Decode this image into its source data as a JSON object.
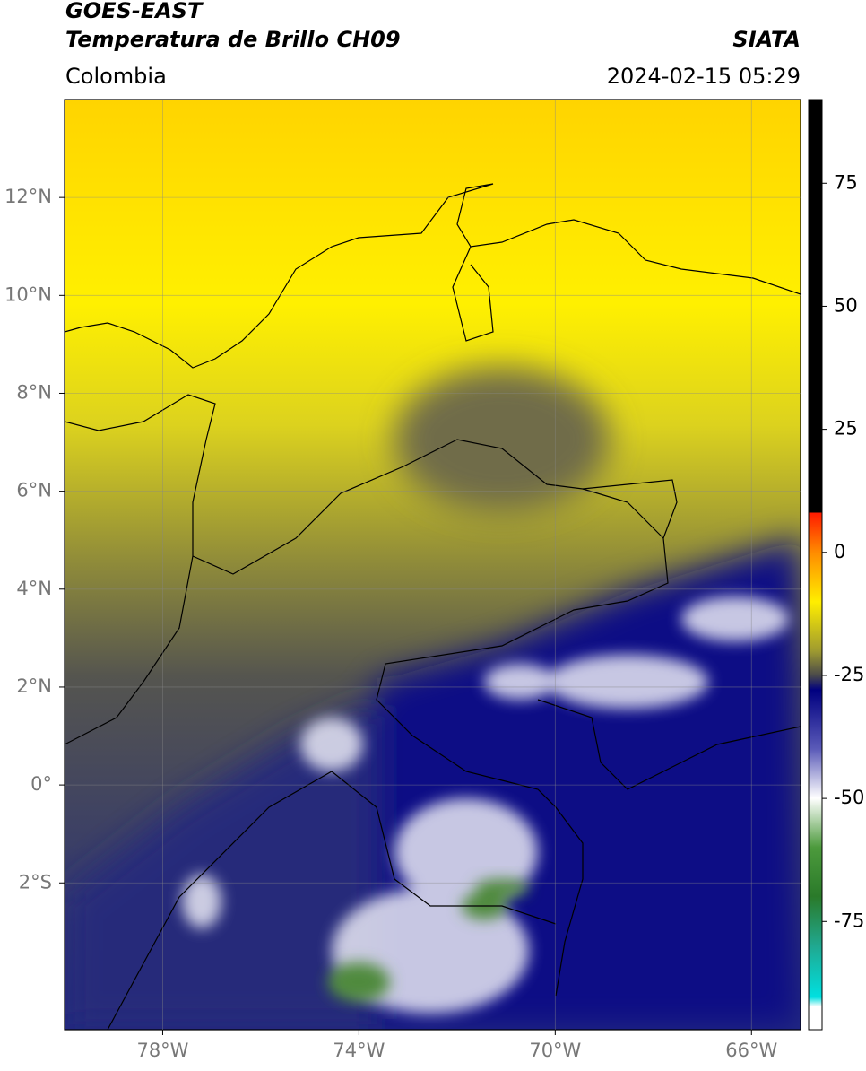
{
  "header": {
    "title": "GOES-EAST",
    "subtitle": "Temperatura de Brillo CH09",
    "source": "SIATA",
    "region": "Colombia",
    "datetime": "2024-02-15 05:29"
  },
  "map": {
    "xlim": [
      -80,
      -65
    ],
    "ylim": [
      -5,
      14
    ],
    "xticks": [
      {
        "value": -78,
        "label": "78°W"
      },
      {
        "value": -74,
        "label": "74°W"
      },
      {
        "value": -70,
        "label": "70°W"
      },
      {
        "value": -66,
        "label": "66°W"
      }
    ],
    "yticks": [
      {
        "value": 12,
        "label": "12°N"
      },
      {
        "value": 10,
        "label": "10°N"
      },
      {
        "value": 8,
        "label": "8°N"
      },
      {
        "value": 6,
        "label": "6°N"
      },
      {
        "value": 4,
        "label": "4°N"
      },
      {
        "value": 2,
        "label": "2°N"
      },
      {
        "value": 0,
        "label": "0°"
      },
      {
        "value": -2,
        "label": "2°S"
      }
    ]
  },
  "colorbar": {
    "lim": [
      -97,
      92
    ],
    "ticks": [
      -75,
      -50,
      -25,
      0,
      25,
      50,
      75
    ]
  }
}
